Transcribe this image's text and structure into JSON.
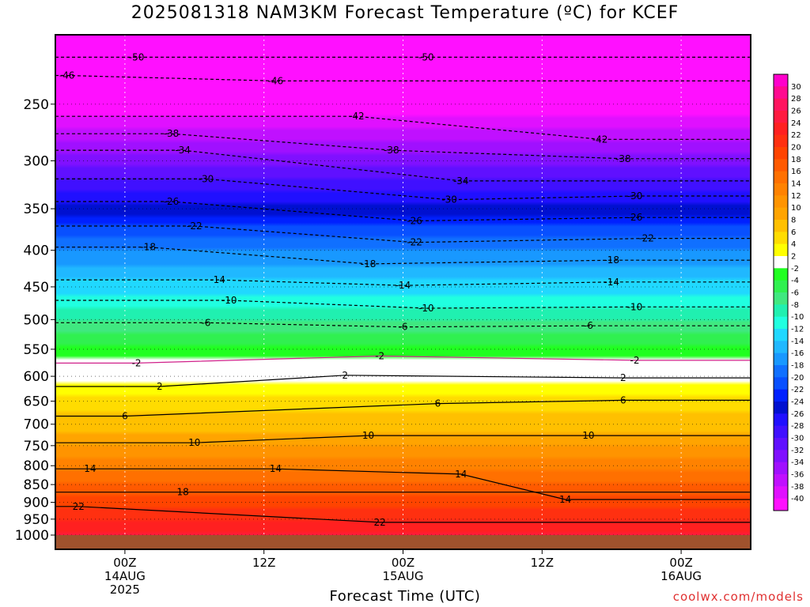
{
  "title": "2025081318 NAM3KM Forecast Temperature (ºC) for KCEF",
  "credit": "coolwx.com/models",
  "chart_data": {
    "type": "heatmap",
    "xlabel": "Forecast Time (UTC)",
    "ylabel": "",
    "x_range_hours": [
      -6,
      54
    ],
    "x_ticks": [
      {
        "hour": 0,
        "lines": [
          "00Z",
          "14AUG",
          "2025"
        ]
      },
      {
        "hour": 12,
        "lines": [
          "12Z"
        ]
      },
      {
        "hour": 24,
        "lines": [
          "00Z",
          "15AUG"
        ]
      },
      {
        "hour": 36,
        "lines": [
          "12Z"
        ]
      },
      {
        "hour": 48,
        "lines": [
          "00Z",
          "16AUG"
        ]
      }
    ],
    "y_scale": "log-pressure",
    "y_range_hpa": [
      1000,
      200
    ],
    "y_ticks": [
      250,
      300,
      350,
      400,
      450,
      500,
      550,
      600,
      650,
      700,
      750,
      800,
      850,
      900,
      950,
      1000
    ],
    "grid": "dotted",
    "surface_color": "#a0522d",
    "colorbar": {
      "labels": [
        "30",
        "28",
        "26",
        "24",
        "22",
        "20",
        "18",
        "16",
        "14",
        "12",
        "10",
        "8",
        "6",
        "4",
        "2",
        "-2",
        "-4",
        "-6",
        "-8",
        "-10",
        "-12",
        "-14",
        "-16",
        "-18",
        "-20",
        "-22",
        "-24",
        "-26",
        "-28",
        "-30",
        "-32",
        "-34",
        "-36",
        "-38",
        "-40"
      ],
      "colors": [
        "#ff00cc",
        "#ff0a90",
        "#ff1460",
        "#ff1a40",
        "#ff2020",
        "#ff3010",
        "#ff4400",
        "#ff5a00",
        "#ff7000",
        "#ff8200",
        "#ff9400",
        "#ffa400",
        "#ffc000",
        "#ffdc00",
        "#ffff00",
        "#ffffff",
        "#20ff20",
        "#30f050",
        "#40e880",
        "#20f0b0",
        "#20ffe0",
        "#20d8ff",
        "#20b8ff",
        "#1898ff",
        "#1070ff",
        "#0850ff",
        "#0020ff",
        "#0010d0",
        "#2010ff",
        "#4010ff",
        "#6010ff",
        "#8010ff",
        "#a010ff",
        "#c010ff",
        "#e010ff",
        "#ff10ff"
      ]
    },
    "profile": [
      {
        "p": 1000,
        "t": 24
      },
      {
        "p": 950,
        "t": 22
      },
      {
        "p": 900,
        "t": 19
      },
      {
        "p": 850,
        "t": 16
      },
      {
        "p": 800,
        "t": 13
      },
      {
        "p": 750,
        "t": 10
      },
      {
        "p": 700,
        "t": 7
      },
      {
        "p": 650,
        "t": 5
      },
      {
        "p": 600,
        "t": 1
      },
      {
        "p": 550,
        "t": -3
      },
      {
        "p": 500,
        "t": -8
      },
      {
        "p": 450,
        "t": -13
      },
      {
        "p": 400,
        "t": -18
      },
      {
        "p": 350,
        "t": -25
      },
      {
        "p": 300,
        "t": -33
      },
      {
        "p": 250,
        "t": -42
      },
      {
        "p": 200,
        "t": -52
      }
    ],
    "contours": [
      {
        "label": "-50",
        "labels_at": [
          {
            "hour": 1,
            "p": 215
          },
          {
            "hour": 26,
            "p": 215
          }
        ]
      },
      {
        "label": "-46",
        "labels_at": [
          {
            "hour": -5,
            "p": 228
          },
          {
            "hour": 13,
            "p": 232
          }
        ]
      },
      {
        "label": "-42",
        "labels_at": [
          {
            "hour": 20,
            "p": 260
          },
          {
            "hour": 41,
            "p": 280
          }
        ]
      },
      {
        "label": "-38",
        "labels_at": [
          {
            "hour": 4,
            "p": 275
          },
          {
            "hour": 23,
            "p": 290
          },
          {
            "hour": 43,
            "p": 298
          }
        ]
      },
      {
        "label": "-34",
        "labels_at": [
          {
            "hour": 5,
            "p": 290
          },
          {
            "hour": 29,
            "p": 320
          }
        ]
      },
      {
        "label": "-30",
        "labels_at": [
          {
            "hour": 7,
            "p": 318
          },
          {
            "hour": 28,
            "p": 340
          },
          {
            "hour": 44,
            "p": 336
          }
        ]
      },
      {
        "label": "-26",
        "labels_at": [
          {
            "hour": 4,
            "p": 342
          },
          {
            "hour": 25,
            "p": 364
          },
          {
            "hour": 44,
            "p": 360
          }
        ]
      },
      {
        "label": "-22",
        "labels_at": [
          {
            "hour": 6,
            "p": 370
          },
          {
            "hour": 25,
            "p": 390
          },
          {
            "hour": 45,
            "p": 385
          }
        ]
      },
      {
        "label": "-18",
        "labels_at": [
          {
            "hour": 2,
            "p": 396
          },
          {
            "hour": 21,
            "p": 418
          },
          {
            "hour": 42,
            "p": 413
          }
        ]
      },
      {
        "label": "-14",
        "labels_at": [
          {
            "hour": 8,
            "p": 440
          },
          {
            "hour": 24,
            "p": 448
          },
          {
            "hour": 42,
            "p": 443
          }
        ]
      },
      {
        "label": "-10",
        "labels_at": [
          {
            "hour": 9,
            "p": 470
          },
          {
            "hour": 26,
            "p": 482
          },
          {
            "hour": 44,
            "p": 480
          }
        ]
      },
      {
        "label": "-6",
        "labels_at": [
          {
            "hour": 7,
            "p": 505
          },
          {
            "hour": 24,
            "p": 512
          },
          {
            "hour": 40,
            "p": 510
          }
        ]
      },
      {
        "label": "-2",
        "labels_at": [
          {
            "hour": 1,
            "p": 575
          },
          {
            "hour": 22,
            "p": 562
          },
          {
            "hour": 44,
            "p": 570
          }
        ]
      },
      {
        "label": "2",
        "labels_at": [
          {
            "hour": 3,
            "p": 620
          },
          {
            "hour": 19,
            "p": 598
          },
          {
            "hour": 43,
            "p": 603
          }
        ]
      },
      {
        "label": "6",
        "labels_at": [
          {
            "hour": 0,
            "p": 682
          },
          {
            "hour": 27,
            "p": 655
          },
          {
            "hour": 43,
            "p": 648
          }
        ]
      },
      {
        "label": "10",
        "labels_at": [
          {
            "hour": 6,
            "p": 743
          },
          {
            "hour": 21,
            "p": 726
          },
          {
            "hour": 40,
            "p": 726
          }
        ]
      },
      {
        "label": "14",
        "labels_at": [
          {
            "hour": -3,
            "p": 808
          },
          {
            "hour": 13,
            "p": 808
          },
          {
            "hour": 29,
            "p": 822
          },
          {
            "hour": 38,
            "p": 892
          }
        ]
      },
      {
        "label": "18",
        "labels_at": [
          {
            "hour": 5,
            "p": 871
          }
        ]
      },
      {
        "label": "22",
        "labels_at": [
          {
            "hour": -4,
            "p": 912
          },
          {
            "hour": 22,
            "p": 960
          }
        ]
      }
    ]
  }
}
